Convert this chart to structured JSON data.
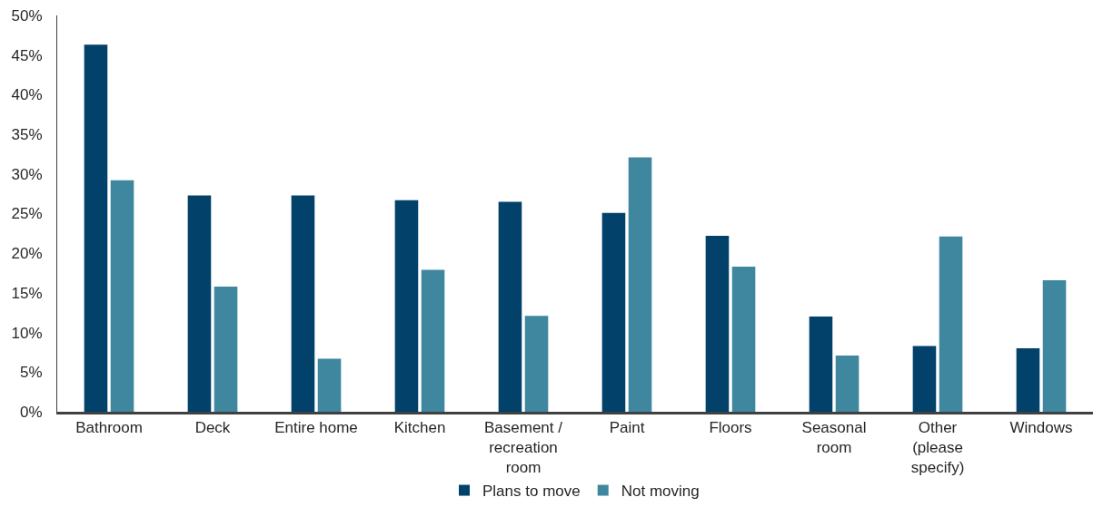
{
  "chart_data": {
    "type": "bar",
    "categories": [
      "Bathroom",
      "Deck",
      "Entire home",
      "Kitchen",
      "Basement / recreation room",
      "Paint",
      "Floors",
      "Seasonal room",
      "Other (please specify)",
      "Windows"
    ],
    "series": [
      {
        "name": "Plans to move",
        "color": "#02416a",
        "values": [
          46.3,
          27.3,
          27.3,
          26.7,
          26.5,
          25.1,
          22.2,
          12.0,
          8.3,
          8.0
        ]
      },
      {
        "name": "Not moving",
        "color": "#3f879f",
        "values": [
          29.2,
          15.8,
          6.7,
          17.9,
          12.1,
          32.1,
          18.3,
          7.1,
          22.1,
          16.6
        ]
      }
    ],
    "ylim": [
      0,
      50
    ],
    "yticks": [
      {
        "value": 0,
        "label": "0%"
      },
      {
        "value": 5,
        "label": "5%"
      },
      {
        "value": 10,
        "label": "10%"
      },
      {
        "value": 15,
        "label": "15%"
      },
      {
        "value": 20,
        "label": "20%"
      },
      {
        "value": 25,
        "label": "25%"
      },
      {
        "value": 30,
        "label": "30%"
      },
      {
        "value": 35,
        "label": "35%"
      },
      {
        "value": 40,
        "label": "40%"
      },
      {
        "value": 45,
        "label": "45%"
      },
      {
        "value": 50,
        "label": "50%"
      }
    ],
    "legend": "bottom"
  }
}
